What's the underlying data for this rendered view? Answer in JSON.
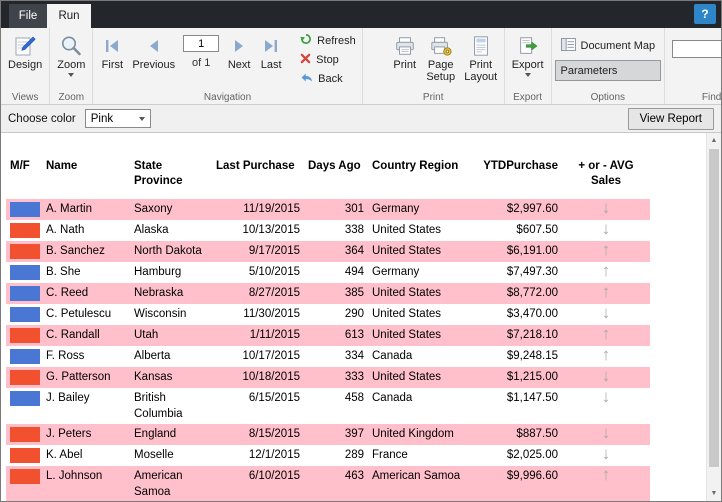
{
  "titlebar": {
    "file_tab": "File",
    "run_tab": "Run",
    "help": "?"
  },
  "ribbon": {
    "views": {
      "design": "Design",
      "label": "Views"
    },
    "zoom": {
      "zoom": "Zoom",
      "label": "Zoom"
    },
    "navigation": {
      "first": "First",
      "previous": "Previous",
      "page_value": "1",
      "of_pages": "of 1",
      "next": "Next",
      "last": "Last",
      "refresh": "Refresh",
      "stop": "Stop",
      "back": "Back",
      "label": "Navigation"
    },
    "print": {
      "print": "Print",
      "page_setup": "Page Setup",
      "print_layout": "Print Layout",
      "label": "Print"
    },
    "export": {
      "export": "Export",
      "label": "Export"
    },
    "options": {
      "document_map": "Document Map",
      "parameters": "Parameters",
      "label": "Options"
    },
    "find": {
      "search_value": "",
      "label": "Find"
    }
  },
  "parameters_bar": {
    "choose_color_label": "Choose color",
    "selected_color": "Pink",
    "view_report": "View Report"
  },
  "report": {
    "columns": [
      "M/F",
      "Name",
      "State Province",
      "Last Purchase",
      "Days Ago",
      "Country Region",
      "YTDPurchase",
      "+ or - AVG Sales"
    ],
    "colors": {
      "blue_swatch": "#4a77d4",
      "red_swatch": "#f1512f",
      "row_highlight": "#ffc0cb",
      "trend_arrow": "#a9a9a9"
    },
    "trend_icons": {
      "up": "↑",
      "down": "↓"
    },
    "rows": [
      {
        "gender_color": "blue",
        "name": "A. Martin",
        "state": "Saxony",
        "last_purchase": "11/19/2015",
        "days_ago": "301",
        "country": "Germany",
        "ytd_purchase": "$2,997.60",
        "trend": "down"
      },
      {
        "gender_color": "red",
        "name": "A. Nath",
        "state": "Alaska",
        "last_purchase": "10/13/2015",
        "days_ago": "338",
        "country": "United States",
        "ytd_purchase": "$607.50",
        "trend": "down"
      },
      {
        "gender_color": "red",
        "name": "B. Sanchez",
        "state": "North Dakota",
        "last_purchase": "9/17/2015",
        "days_ago": "364",
        "country": "United States",
        "ytd_purchase": "$6,191.00",
        "trend": "up"
      },
      {
        "gender_color": "blue",
        "name": "B. She",
        "state": "Hamburg",
        "last_purchase": "5/10/2015",
        "days_ago": "494",
        "country": "Germany",
        "ytd_purchase": "$7,497.30",
        "trend": "up"
      },
      {
        "gender_color": "blue",
        "name": "C. Reed",
        "state": "Nebraska",
        "last_purchase": "8/27/2015",
        "days_ago": "385",
        "country": "United States",
        "ytd_purchase": "$8,772.00",
        "trend": "up"
      },
      {
        "gender_color": "blue",
        "name": "C. Petulescu",
        "state": "Wisconsin",
        "last_purchase": "11/30/2015",
        "days_ago": "290",
        "country": "United States",
        "ytd_purchase": "$3,470.00",
        "trend": "down"
      },
      {
        "gender_color": "red",
        "name": "C. Randall",
        "state": "Utah",
        "last_purchase": "1/11/2015",
        "days_ago": "613",
        "country": "United States",
        "ytd_purchase": "$7,218.10",
        "trend": "up"
      },
      {
        "gender_color": "blue",
        "name": "F. Ross",
        "state": "Alberta",
        "last_purchase": "10/17/2015",
        "days_ago": "334",
        "country": "Canada",
        "ytd_purchase": "$9,248.15",
        "trend": "up"
      },
      {
        "gender_color": "red",
        "name": "G. Patterson",
        "state": "Kansas",
        "last_purchase": "10/18/2015",
        "days_ago": "333",
        "country": "United States",
        "ytd_purchase": "$1,215.00",
        "trend": "down"
      },
      {
        "gender_color": "blue",
        "name": "J. Bailey",
        "state": "British Columbia",
        "last_purchase": "6/15/2015",
        "days_ago": "458",
        "country": "Canada",
        "ytd_purchase": "$1,147.50",
        "trend": "down"
      },
      {
        "gender_color": "red",
        "name": "J. Peters",
        "state": "England",
        "last_purchase": "8/15/2015",
        "days_ago": "397",
        "country": "United Kingdom",
        "ytd_purchase": "$887.50",
        "trend": "down"
      },
      {
        "gender_color": "red",
        "name": "K. Abel",
        "state": "Moselle",
        "last_purchase": "12/1/2015",
        "days_ago": "289",
        "country": "France",
        "ytd_purchase": "$2,025.00",
        "trend": "down"
      },
      {
        "gender_color": "red",
        "name": "L. Johnson",
        "state": "American Samoa",
        "last_purchase": "6/10/2015",
        "days_ago": "463",
        "country": "American Samoa",
        "ytd_purchase": "$9,996.60",
        "trend": "up"
      }
    ]
  }
}
